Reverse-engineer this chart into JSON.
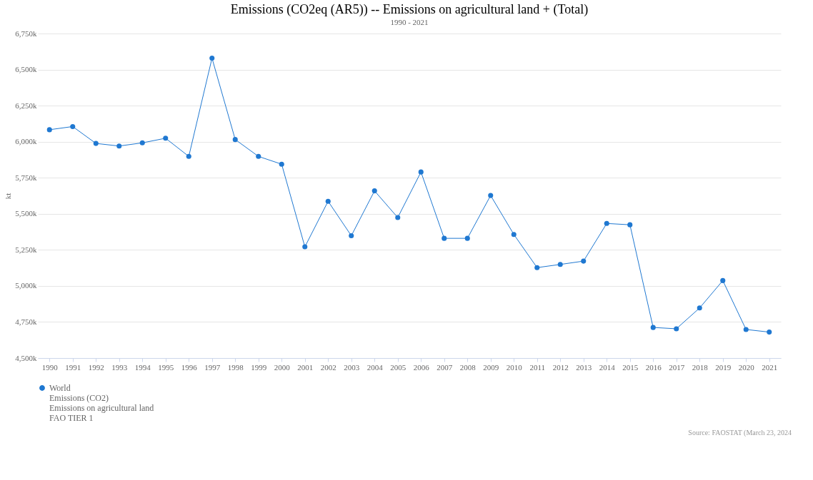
{
  "chart_data": {
    "type": "line",
    "title": "Emissions (CO2eq (AR5)) -- Emissions on agricultural land + (Total)",
    "subtitle": "1990 - 2021",
    "ylabel": "kt",
    "categories": [
      "1990",
      "1991",
      "1992",
      "1993",
      "1994",
      "1995",
      "1996",
      "1997",
      "1998",
      "1999",
      "2000",
      "2001",
      "2002",
      "2003",
      "2004",
      "2005",
      "2006",
      "2007",
      "2008",
      "2009",
      "2010",
      "2011",
      "2012",
      "2013",
      "2014",
      "2015",
      "2016",
      "2017",
      "2018",
      "2019",
      "2020",
      "2021"
    ],
    "series": [
      {
        "name": "World\nEmissions (CO2)\nEmissions on agricultural land\nFAO TIER 1",
        "color": "#1f78d1",
        "values": [
          6083000,
          6105000,
          5988000,
          5970000,
          5992000,
          6024000,
          5898000,
          6579000,
          6015000,
          5898000,
          5844000,
          5271000,
          5587000,
          5348000,
          5659000,
          5474000,
          5790000,
          5330000,
          5330000,
          5627000,
          5357000,
          5127000,
          5149000,
          5172000,
          5433000,
          5424000,
          4712000,
          4703000,
          4847000,
          5037000,
          4698000,
          4680000
        ]
      }
    ],
    "ylim": [
      4500000,
      6750000
    ],
    "yticks": [
      {
        "value": 4500000,
        "label": "4,500k"
      },
      {
        "value": 4750000,
        "label": "4,750k"
      },
      {
        "value": 5000000,
        "label": "5,000k"
      },
      {
        "value": 5250000,
        "label": "5,250k"
      },
      {
        "value": 5500000,
        "label": "5,500k"
      },
      {
        "value": 5750000,
        "label": "5,750k"
      },
      {
        "value": 6000000,
        "label": "6,000k"
      },
      {
        "value": 6250000,
        "label": "6,250k"
      },
      {
        "value": 6500000,
        "label": "6,500k"
      },
      {
        "value": 6750000,
        "label": "6,750k"
      }
    ],
    "grid": "y",
    "legend": "bottom",
    "marker": "circle",
    "line_style": "solid",
    "annotations": [
      "Source: FAOSTAT (March 23, 2024"
    ]
  }
}
